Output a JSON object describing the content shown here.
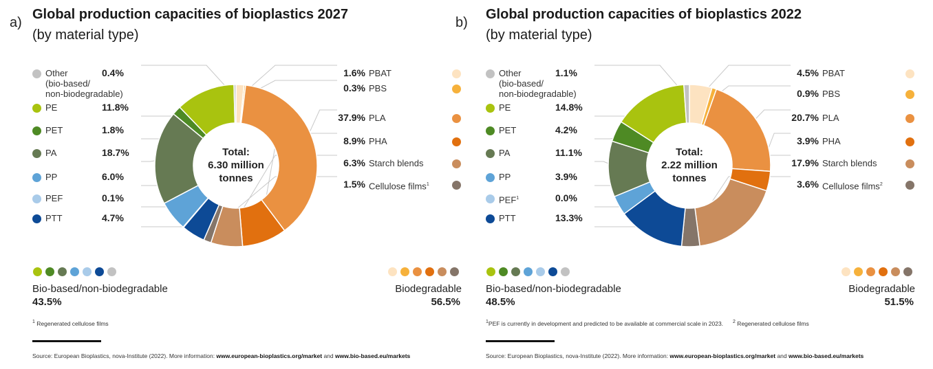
{
  "chart_data": [
    {
      "type": "pie",
      "donut": true,
      "panel_label": "a)",
      "title": "Global production capacities of bioplastics 2027",
      "subtitle": "(by material type)",
      "center_text": [
        "Total:",
        "6.30 million",
        "tonnes"
      ],
      "slices": [
        {
          "name": "PBAT",
          "sup": "",
          "value": 1.6,
          "label": "1.6%",
          "color": "#fde3c1",
          "group": "biodegradable"
        },
        {
          "name": "PBS",
          "sup": "",
          "value": 0.3,
          "label": "0.3%",
          "color": "#f6b13b",
          "group": "biodegradable"
        },
        {
          "name": "PLA",
          "sup": "",
          "value": 37.9,
          "label": "37.9%",
          "color": "#ea9141",
          "group": "biodegradable"
        },
        {
          "name": "PHA",
          "sup": "",
          "value": 8.9,
          "label": "8.9%",
          "color": "#e1700f",
          "group": "biodegradable"
        },
        {
          "name": "Starch blends",
          "sup": "",
          "value": 6.3,
          "label": "6.3%",
          "color": "#c98d5d",
          "group": "biodegradable"
        },
        {
          "name": "Cellulose films",
          "sup": "1",
          "value": 1.5,
          "label": "1.5%",
          "color": "#857569",
          "group": "biodegradable"
        },
        {
          "name": "PTT",
          "sup": "",
          "value": 4.7,
          "label": "4.7%",
          "color": "#0d4a96",
          "group": "bio-based"
        },
        {
          "name": "PEF",
          "sup": "",
          "value": 0.1,
          "label": "0.1%",
          "color": "#a9cbe9",
          "group": "bio-based"
        },
        {
          "name": "PP",
          "sup": "",
          "value": 6.0,
          "label": "6.0%",
          "color": "#5ea3d7",
          "group": "bio-based"
        },
        {
          "name": "PA",
          "sup": "",
          "value": 18.7,
          "label": "18.7%",
          "color": "#667a53",
          "group": "bio-based"
        },
        {
          "name": "PET",
          "sup": "",
          "value": 1.8,
          "label": "1.8%",
          "color": "#4e8a24",
          "group": "bio-based"
        },
        {
          "name": "PE",
          "sup": "",
          "value": 11.8,
          "label": "11.8%",
          "color": "#a9c30f",
          "group": "bio-based"
        },
        {
          "name": "Other (bio-based/ non-biodegradable)",
          "lines": [
            "Other",
            "(bio-based/",
            "non-biodegradable)"
          ],
          "sup": "",
          "value": 0.4,
          "label": "0.4%",
          "color": "#c2c2c2",
          "group": "bio-based"
        }
      ],
      "groups": {
        "bio_based": {
          "label": "Bio-based/non-biodegradable",
          "value": "43.5%"
        },
        "biodegradable": {
          "label": "Biodegradable",
          "value": "56.5%"
        }
      },
      "footnotes": [
        {
          "sup": "1",
          "text": " Regenerated cellulose films"
        }
      ],
      "source": {
        "prefix": "Source: European Bioplastics, nova-Institute (2022). More information: ",
        "link1": "www.european-bioplastics.org/market",
        "mid": " and ",
        "link2": "www.bio-based.eu/markets"
      }
    },
    {
      "type": "pie",
      "donut": true,
      "panel_label": "b)",
      "title": "Global production capacities of bioplastics 2022",
      "subtitle": "(by material type)",
      "center_text": [
        "Total:",
        "2.22 million",
        "tonnes"
      ],
      "slices": [
        {
          "name": "PBAT",
          "sup": "",
          "value": 4.5,
          "label": "4.5%",
          "color": "#fde3c1",
          "group": "biodegradable"
        },
        {
          "name": "PBS",
          "sup": "",
          "value": 0.9,
          "label": "0.9%",
          "color": "#f6b13b",
          "group": "biodegradable"
        },
        {
          "name": "PLA",
          "sup": "",
          "value": 20.7,
          "label": "20.7%",
          "color": "#ea9141",
          "group": "biodegradable"
        },
        {
          "name": "PHA",
          "sup": "",
          "value": 3.9,
          "label": "3.9%",
          "color": "#e1700f",
          "group": "biodegradable"
        },
        {
          "name": "Starch blends",
          "sup": "",
          "value": 17.9,
          "label": "17.9%",
          "color": "#c98d5d",
          "group": "biodegradable"
        },
        {
          "name": "Cellulose films",
          "sup": "2",
          "value": 3.6,
          "label": "3.6%",
          "color": "#857569",
          "group": "biodegradable"
        },
        {
          "name": "PTT",
          "sup": "",
          "value": 13.3,
          "label": "13.3%",
          "color": "#0d4a96",
          "group": "bio-based"
        },
        {
          "name": "PEF",
          "sup": "1",
          "value": 0.0,
          "label": "0.0%",
          "color": "#a9cbe9",
          "group": "bio-based"
        },
        {
          "name": "PP",
          "sup": "",
          "value": 3.9,
          "label": "3.9%",
          "color": "#5ea3d7",
          "group": "bio-based"
        },
        {
          "name": "PA",
          "sup": "",
          "value": 11.1,
          "label": "11.1%",
          "color": "#667a53",
          "group": "bio-based"
        },
        {
          "name": "PET",
          "sup": "",
          "value": 4.2,
          "label": "4.2%",
          "color": "#4e8a24",
          "group": "bio-based"
        },
        {
          "name": "PE",
          "sup": "",
          "value": 14.8,
          "label": "14.8%",
          "color": "#a9c30f",
          "group": "bio-based"
        },
        {
          "name": "Other (bio-based/ non-biodegradable)",
          "lines": [
            "Other",
            "(bio-based/",
            "non-biodegradable)"
          ],
          "sup": "",
          "value": 1.1,
          "label": "1.1%",
          "color": "#c2c2c2",
          "group": "bio-based"
        }
      ],
      "groups": {
        "bio_based": {
          "label": "Bio-based/non-biodegradable",
          "value": "48.5%"
        },
        "biodegradable": {
          "label": "Biodegradable",
          "value": "51.5%"
        }
      },
      "footnotes": [
        {
          "sup": "1",
          "text": "PEF is currently in development and predicted to be available at commercial scale in 2023."
        },
        {
          "sup": "2",
          "text": " Regenerated cellulose films"
        }
      ],
      "source": {
        "prefix": "Source: European Bioplastics, nova-Institute (2022). More information: ",
        "link1": "www.european-bioplastics.org/market",
        "mid": " and ",
        "link2": "www.bio-based.eu/markets"
      }
    }
  ]
}
